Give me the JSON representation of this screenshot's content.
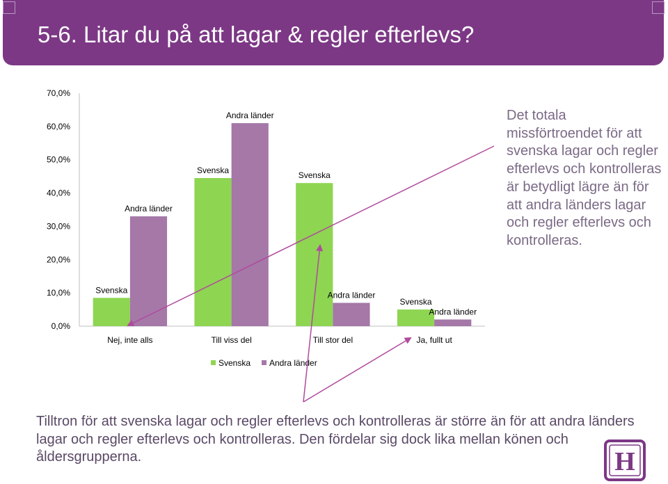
{
  "slide": {
    "title": "5-6. Litar du på att lagar & regler efterlevs?",
    "side_text": "Det totala missförtroendet för att svenska lagar och regler efterlevs och kontrolleras är betydligt lägre än för att andra länders lagar och regler efterlevs och kontrolleras.",
    "bottom_text": "Tilltron för att svenska lagar och regler efterlevs och kontrolleras är större än för att andra länders lagar och regler efterlevs och kontrolleras. Den fördelar sig dock lika mellan könen och åldersgrupperna.",
    "logo_letter": "H"
  },
  "colors": {
    "header": "#7c3885",
    "svenska": "#8ed552",
    "andra": "#a578a8",
    "arrow": "#b04a9c",
    "axis": "#bfbfbf"
  },
  "chart_data": {
    "type": "bar",
    "categories": [
      "Nej, inte alls",
      "Till viss del",
      "Till stor del",
      "Ja, fullt ut"
    ],
    "series": [
      {
        "name": "Svenska",
        "values": [
          8.5,
          44.5,
          43.0,
          5.0
        ]
      },
      {
        "name": "Andra länder",
        "values": [
          33.0,
          61.0,
          7.0,
          2.0
        ]
      }
    ],
    "ylim": [
      0,
      70
    ],
    "yticks": [
      "0,0%",
      "10,0%",
      "20,0%",
      "30,0%",
      "40,0%",
      "50,0%",
      "60,0%",
      "70,0%"
    ],
    "legend": {
      "position": "bottom",
      "labels": [
        "Svenska",
        "Andra länder"
      ]
    },
    "xlabel": "",
    "ylabel": ""
  }
}
